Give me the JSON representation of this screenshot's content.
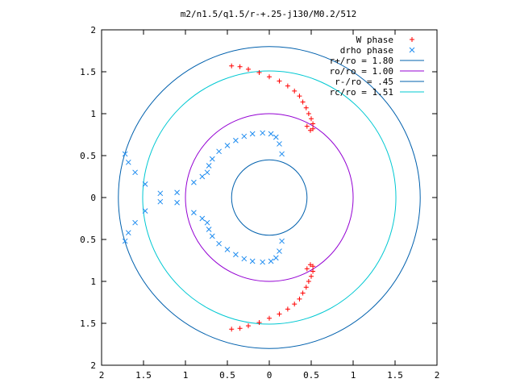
{
  "chart_data": {
    "type": "scatter",
    "title": "m2/n1.5/q1.5/r-+.25-j130/M0.2/512",
    "xlabel": "",
    "ylabel": "",
    "xlim": [
      -2,
      2
    ],
    "ylim": [
      -2,
      2
    ],
    "grid": false,
    "legend_position": "top-right",
    "x_ticks": [
      -2,
      -1.5,
      -1,
      -0.5,
      0,
      0.5,
      1,
      1.5,
      2
    ],
    "y_ticks": [
      -2,
      -1.5,
      -1,
      -0.5,
      0,
      0.5,
      1,
      1.5,
      2
    ],
    "x_tick_labels": [
      "2",
      "1.5",
      "1",
      "0.5",
      "0",
      "0.5",
      "1",
      "1.5",
      "2"
    ],
    "y_tick_labels": [
      "2",
      "1.5",
      "1",
      "0.5",
      "0",
      "0.5",
      "1",
      "1.5",
      "2"
    ],
    "circles": [
      {
        "name": "r+/ro = 1.80",
        "radius": 1.8,
        "color": "#0060ad"
      },
      {
        "name": "ro/ro = 1.00",
        "radius": 1.0,
        "color": "#9400d3"
      },
      {
        "name": "r-/ro = .45",
        "radius": 0.45,
        "color": "#0060ad"
      },
      {
        "name": "rc/ro = 1.51",
        "radius": 1.51,
        "color": "#00c8d2"
      }
    ],
    "series": [
      {
        "name": "W phase",
        "marker": "plus",
        "color": "#ff0000",
        "x": [
          -0.45,
          -0.35,
          -0.25,
          -0.12,
          0.0,
          0.12,
          0.22,
          0.3,
          0.36,
          0.4,
          0.44,
          0.47,
          0.5,
          0.52,
          0.52,
          0.49,
          0.45,
          0.45,
          0.49,
          0.52,
          0.52,
          0.5,
          0.47,
          0.44,
          0.4,
          0.36,
          0.3,
          0.22,
          0.12,
          0.0,
          -0.12,
          -0.25,
          -0.35,
          -0.45
        ],
        "y": [
          1.57,
          1.56,
          1.53,
          1.49,
          1.44,
          1.39,
          1.33,
          1.27,
          1.21,
          1.14,
          1.07,
          1.0,
          0.94,
          0.88,
          0.82,
          0.8,
          0.85,
          -0.85,
          -0.8,
          -0.82,
          -0.88,
          -0.94,
          -1.0,
          -1.07,
          -1.14,
          -1.21,
          -1.27,
          -1.33,
          -1.39,
          -1.44,
          -1.49,
          -1.53,
          -1.56,
          -1.57
        ]
      },
      {
        "name": "drho phase",
        "marker": "cross",
        "color": "#1e8cf0",
        "x": [
          -1.72,
          -1.68,
          -1.6,
          -1.48,
          -1.3,
          -1.1,
          -0.9,
          -0.8,
          -0.74,
          -0.72,
          -0.68,
          -0.6,
          -0.5,
          -0.4,
          -0.3,
          -0.2,
          -0.08,
          0.02,
          0.08,
          0.12,
          0.15,
          0.15,
          0.12,
          0.08,
          0.02,
          -0.08,
          -0.2,
          -0.3,
          -0.4,
          -0.5,
          -0.6,
          -0.68,
          -0.72,
          -0.74,
          -0.8,
          -0.9,
          -1.1,
          -1.3,
          -1.48,
          -1.6,
          -1.68,
          -1.72
        ],
        "y": [
          0.52,
          0.42,
          0.3,
          0.16,
          0.05,
          -0.06,
          -0.18,
          -0.25,
          -0.3,
          -0.38,
          -0.46,
          -0.55,
          -0.62,
          -0.68,
          -0.73,
          -0.76,
          -0.77,
          -0.76,
          -0.72,
          -0.64,
          -0.52,
          0.52,
          0.64,
          0.72,
          0.76,
          0.77,
          0.76,
          0.73,
          0.68,
          0.62,
          0.55,
          0.46,
          0.38,
          0.3,
          0.25,
          0.18,
          0.06,
          -0.05,
          -0.16,
          -0.3,
          -0.42,
          -0.52
        ]
      }
    ]
  }
}
